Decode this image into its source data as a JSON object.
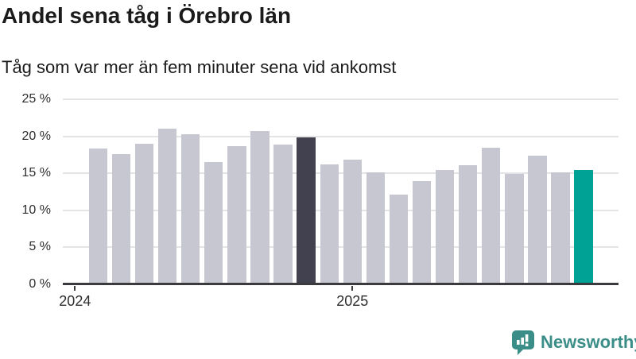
{
  "header": {
    "title": "Andel sena tåg i Örebro län",
    "subtitle": "Tåg som var mer än fem minuter sena vid ankomst"
  },
  "chart_data": {
    "type": "bar",
    "title": "Andel sena tåg i Örebro län",
    "subtitle": "Tåg som var mer än fem minuter sena vid ankomst",
    "unit": "%",
    "x": [
      "2024-02",
      "2024-03",
      "2024-04",
      "2024-05",
      "2024-06",
      "2024-07",
      "2024-08",
      "2024-09",
      "2024-10",
      "2024-11",
      "2024-12",
      "2025-01",
      "2025-02",
      "2025-03",
      "2025-04",
      "2025-05",
      "2025-06",
      "2025-07",
      "2025-08",
      "2025-09",
      "2025-10",
      "2025-11"
    ],
    "values": [
      18.4,
      17.6,
      19.0,
      21.0,
      20.3,
      16.5,
      18.7,
      20.7,
      18.9,
      19.9,
      16.2,
      16.8,
      15.1,
      12.1,
      14.0,
      15.4,
      16.1,
      18.5,
      14.9,
      17.4,
      15.1,
      15.5
    ],
    "ylim": [
      0,
      25
    ],
    "y_ticks": [
      0,
      5,
      10,
      15,
      20,
      25
    ],
    "y_tick_labels": [
      "0 %",
      "5 %",
      "10 %",
      "15 %",
      "20 %",
      "25 %"
    ],
    "x_ticks": [
      {
        "label": "2024",
        "bar_index": -1
      },
      {
        "label": "2025",
        "bar_index": 11
      }
    ],
    "grid": true,
    "legend": false,
    "colors": {
      "default": "#c7c7d1",
      "highlight_dark": "#414150",
      "highlight_teal": "#00a295"
    },
    "highlight_indices": {
      "dark": 9,
      "teal": 21
    }
  },
  "footer": {
    "brand": "Newsworthy",
    "brand_color": "#3b8e87",
    "logo_icon": "bar-chart-speech-bubble-icon"
  }
}
